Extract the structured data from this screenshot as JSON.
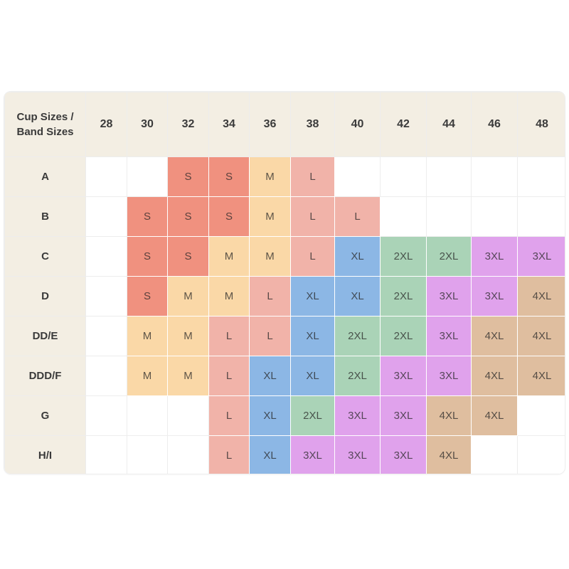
{
  "chart_data": {
    "type": "table",
    "title": "Cup Sizes / Band Sizes",
    "columns": [
      "28",
      "30",
      "32",
      "34",
      "36",
      "38",
      "40",
      "42",
      "44",
      "46",
      "48"
    ],
    "rows": [
      {
        "cup": "A",
        "cells": [
          "",
          "",
          "S",
          "S",
          "M",
          "L",
          "",
          "",
          "",
          "",
          ""
        ]
      },
      {
        "cup": "B",
        "cells": [
          "",
          "S",
          "S",
          "S",
          "M",
          "L",
          "L",
          "",
          "",
          "",
          ""
        ]
      },
      {
        "cup": "C",
        "cells": [
          "",
          "S",
          "S",
          "M",
          "M",
          "L",
          "XL",
          "2XL",
          "2XL",
          "3XL",
          "3XL"
        ]
      },
      {
        "cup": "D",
        "cells": [
          "",
          "S",
          "M",
          "M",
          "L",
          "XL",
          "XL",
          "2XL",
          "3XL",
          "3XL",
          "4XL"
        ]
      },
      {
        "cup": "DD/E",
        "cells": [
          "",
          "M",
          "M",
          "L",
          "L",
          "XL",
          "2XL",
          "2XL",
          "3XL",
          "4XL",
          "4XL"
        ]
      },
      {
        "cup": "DDD/F",
        "cells": [
          "",
          "M",
          "M",
          "L",
          "XL",
          "XL",
          "2XL",
          "3XL",
          "3XL",
          "4XL",
          "4XL"
        ]
      },
      {
        "cup": "G",
        "cells": [
          "",
          "",
          "",
          "L",
          "XL",
          "2XL",
          "3XL",
          "3XL",
          "4XL",
          "4XL",
          ""
        ]
      },
      {
        "cup": "H/I",
        "cells": [
          "",
          "",
          "",
          "L",
          "XL",
          "3XL",
          "3XL",
          "3XL",
          "4XL",
          "",
          ""
        ]
      }
    ]
  },
  "colors": {
    "size_fills": {
      "S": "#f0917f",
      "M": "#fad8a7",
      "L": "#f1b3a9",
      "XL": "#8cb7e5",
      "2XL": "#aad3b7",
      "3XL": "#e0a2ec",
      "4XL": "#dfbe9f"
    },
    "header_bg": "#f3eee3",
    "grid_line": "#ededed",
    "header_text": "#3a3a3a"
  }
}
